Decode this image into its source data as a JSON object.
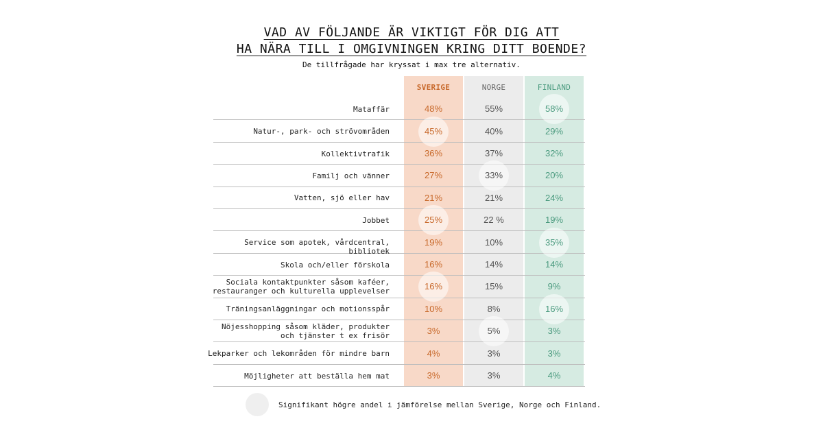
{
  "title_line1": "VAD AV FÖLJANDE ÄR VIKTIGT FÖR DIG ATT",
  "title_line2": "HA NÄRA TILL I OMGIVNINGEN KRING DITT BOENDE?",
  "subtitle": "De tillfrågade har kryssat i max tre alternativ.",
  "legend_text": "Signifikant högre andel i jämförelse mellan Sverige, Norge och Finland.",
  "colors": {
    "sverige": "#c8692b",
    "norge": "#555555",
    "finland": "#4a9a7e",
    "sverige_bg": "#f8d9c8",
    "norge_bg": "#ececec",
    "finland_bg": "#d6ebe2"
  },
  "chart_data": {
    "type": "table",
    "columns": [
      "SVERIGE",
      "NORGE",
      "FINLAND"
    ],
    "rows": [
      {
        "label": "Mataffär",
        "values": [
          "48%",
          "55%",
          "58%"
        ],
        "highlight": [
          false,
          false,
          true
        ]
      },
      {
        "label": "Natur-, park- och strövområden",
        "values": [
          "45%",
          "40%",
          "29%"
        ],
        "highlight": [
          true,
          false,
          false
        ]
      },
      {
        "label": "Kollektivtrafik",
        "values": [
          "36%",
          "37%",
          "32%"
        ],
        "highlight": [
          false,
          false,
          false
        ]
      },
      {
        "label": "Familj och vänner",
        "values": [
          "27%",
          "33%",
          "20%"
        ],
        "highlight": [
          false,
          true,
          false
        ]
      },
      {
        "label": "Vatten, sjö eller hav",
        "values": [
          "21%",
          "21%",
          "24%"
        ],
        "highlight": [
          false,
          false,
          false
        ]
      },
      {
        "label": "Jobbet",
        "values": [
          "25%",
          "22 %",
          "19%"
        ],
        "highlight": [
          true,
          false,
          false
        ]
      },
      {
        "label": "Service som apotek, vårdcentral, bibliotek",
        "values": [
          "19%",
          "10%",
          "35%"
        ],
        "highlight": [
          false,
          false,
          true
        ]
      },
      {
        "label": "Skola och/eller förskola",
        "values": [
          "16%",
          "14%",
          "14%"
        ],
        "highlight": [
          false,
          false,
          false
        ]
      },
      {
        "label": "Sociala kontaktpunkter såsom kaféer,\nrestauranger och kulturella upplevelser",
        "values": [
          "16%",
          "15%",
          "9%"
        ],
        "highlight": [
          true,
          false,
          false
        ]
      },
      {
        "label": "Träningsanläggningar och motionsspår",
        "values": [
          "10%",
          "8%",
          "16%"
        ],
        "highlight": [
          false,
          false,
          true
        ]
      },
      {
        "label": "Nöjesshopping såsom kläder, produkter\noch tjänster t ex frisör",
        "values": [
          "3%",
          "5%",
          "3%"
        ],
        "highlight": [
          false,
          true,
          false
        ]
      },
      {
        "label": "Lekparker och lekområden för mindre barn",
        "values": [
          "4%",
          "3%",
          "3%"
        ],
        "highlight": [
          false,
          false,
          false
        ]
      },
      {
        "label": "Möjligheter att beställa hem mat",
        "values": [
          "3%",
          "3%",
          "4%"
        ],
        "highlight": [
          false,
          false,
          false
        ]
      }
    ]
  }
}
